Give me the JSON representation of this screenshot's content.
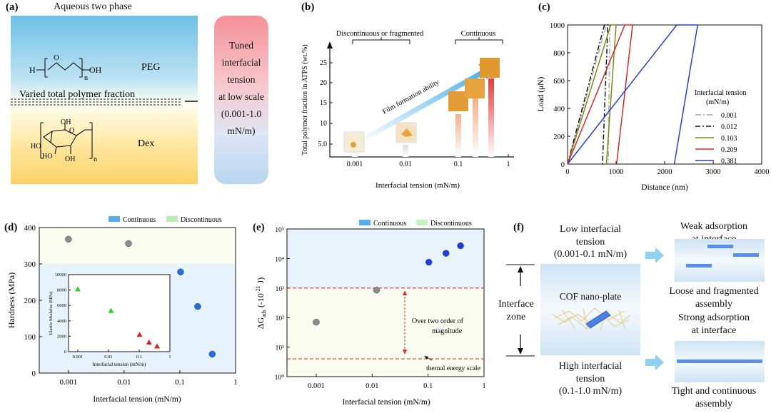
{
  "panel_a": {
    "label": "(a)",
    "title": "Aqueous two phase",
    "peg": "PEG",
    "dex": "Dex",
    "peg_formula": {
      "h": "H",
      "o": "O",
      "oh": "OH",
      "n": "n"
    },
    "dex_formula": {
      "o": "O",
      "ho1": "HO",
      "ho2": "HO",
      "oh1": "OH",
      "oh2": "OH",
      "n": "n"
    },
    "varied": "Varied total polymer fraction",
    "tuned_lines": [
      "Tuned",
      "interfacial",
      "tension",
      "at low scale",
      "(0.001-1.0",
      "mN/m)"
    ]
  },
  "panel_b": {
    "label": "(b)",
    "ylabel": "Total polymer fraction in ATPS (wt.%)",
    "xlabel": "Interfacial tension (mN/m)",
    "yticks": [
      "5.0",
      "10",
      "15",
      "20",
      "25"
    ],
    "xticks": [
      "0.001",
      "0.01",
      "0.1",
      "1"
    ],
    "discontinuous": "Discontinuous  or fragmented",
    "continuous": "Continuous",
    "arrow_label": "Film formation ability"
  },
  "panel_c": {
    "label": "(c)",
    "ylabel": "Load (μN)",
    "xlabel": "Distance (nm)",
    "legend_title": [
      "Interfacial tension",
      "(mN/m)"
    ],
    "chart_data": {
      "type": "line",
      "title": "",
      "xlabel": "Distance (nm)",
      "ylabel": "Load (μN)",
      "xlim": [
        0,
        4000
      ],
      "ylim": [
        0,
        1000
      ],
      "xticks": [
        "0",
        "1000",
        "2000",
        "3000",
        "4000"
      ],
      "yticks": [
        "0",
        "200",
        "400",
        "600",
        "800",
        "1000"
      ],
      "series": [
        {
          "name": "0.001",
          "color": "#aaaaaa",
          "dash": "8,3,2,3",
          "x": [
            0,
            800,
            870,
            840
          ],
          "y": [
            0,
            1000,
            1000,
            0
          ]
        },
        {
          "name": "0.012",
          "color": "#111111",
          "dash": "7,3,2,3",
          "x": [
            0,
            760,
            830,
            720
          ],
          "y": [
            0,
            1000,
            1000,
            0
          ]
        },
        {
          "name": "0.103",
          "color": "#7a8a18",
          "dash": "none",
          "x": [
            0,
            890,
            1000,
            800
          ],
          "y": [
            0,
            1000,
            1000,
            0
          ]
        },
        {
          "name": "0.209",
          "color": "#d42a2a",
          "dash": "none",
          "x": [
            0,
            1180,
            1340,
            1010
          ],
          "y": [
            0,
            1000,
            1000,
            0
          ]
        },
        {
          "name": "0.381",
          "color": "#2a3fd0",
          "dash": "none",
          "x": [
            0,
            2250,
            2680,
            2200
          ],
          "y": [
            0,
            1000,
            1000,
            0
          ]
        }
      ]
    }
  },
  "panel_d": {
    "label": "(d)",
    "legend": [
      "Continuous",
      "Discontinuous"
    ],
    "colors": {
      "continuous": "#5aaee8",
      "discontinuous": "#b6efb0"
    },
    "chart_data": {
      "type": "scatter",
      "xlabel": "Interfacial tension (mN/m)",
      "ylabel": "Hardness (MPa)",
      "xscale": "log",
      "xlim": [
        0.0003,
        1
      ],
      "ylim": [
        0,
        400
      ],
      "xticks": [
        "0.001",
        "0.01",
        "0.1",
        "1"
      ],
      "yticks": [
        "0",
        "100",
        "200",
        "300",
        "400"
      ],
      "series": [
        {
          "name": "Discontinuous",
          "x": [
            0.001,
            0.012
          ],
          "y": [
            368,
            356
          ]
        },
        {
          "name": "Continuous",
          "x": [
            0.103,
            0.209,
            0.381
          ],
          "y": [
            278,
            183,
            52
          ]
        }
      ]
    },
    "inset": {
      "xlabel": "Interfacial tension (mN/m)",
      "ylabel": "Elastic Modulus (MPa)",
      "yticks": [
        "0",
        "2000",
        "4000",
        "6000",
        "8000",
        "10000"
      ],
      "xticks": [
        "0.001",
        "0.01",
        "0.1",
        "1"
      ],
      "chart_data": {
        "type": "scatter",
        "xscale": "log",
        "ylim": [
          0,
          10000
        ],
        "series": [
          {
            "name": "Discontinuous",
            "x": [
              0.001,
              0.012
            ],
            "y": [
              8100,
              5300
            ]
          },
          {
            "name": "Continuous",
            "x": [
              0.103,
              0.209,
              0.381
            ],
            "y": [
              2200,
              1200,
              700
            ]
          }
        ]
      }
    }
  },
  "panel_e": {
    "label": "(e)",
    "legend": [
      "Continuous",
      "Discontinuous"
    ],
    "annot_order": [
      "Over two order of",
      "magnitude"
    ],
    "annot_thermal": "thernal energy scale",
    "chart_data": {
      "type": "scatter",
      "xlabel": "Interfacial tension (mN/m)",
      "ylabel": "ΔG_ads (-10^-21 J)",
      "xscale": "log",
      "yscale": "log",
      "xlim": [
        0.0003,
        1
      ],
      "ylim": [
        1,
        100000
      ],
      "xticks": [
        "0.001",
        "0.01",
        "0.1",
        "1"
      ],
      "yticks": [
        "10⁰",
        "10¹",
        "10²",
        "10³",
        "10⁴",
        "10⁵"
      ],
      "hlines": [
        1000,
        4
      ],
      "series": [
        {
          "name": "Discontinuous",
          "x": [
            0.001,
            0.012
          ],
          "y": [
            70,
            850
          ]
        },
        {
          "name": "Continuous",
          "x": [
            0.103,
            0.209,
            0.381
          ],
          "y": [
            7500,
            15000,
            27000
          ]
        }
      ]
    }
  },
  "panel_f": {
    "label": "(f)",
    "low": [
      "Low interfacial",
      "tension",
      "(0.001-0.1 mN/m)"
    ],
    "high": [
      "High interfacial",
      "tension",
      "(0.1-1.0 mN/m)"
    ],
    "zone": [
      "Interface",
      "zone"
    ],
    "cof": "COF nano-plate",
    "weak": [
      "Weak adsorption",
      "at interface"
    ],
    "strong": [
      "Strong adsorption",
      "at interface"
    ],
    "loose": [
      "Loose and fragmented",
      "assembly"
    ],
    "tight": [
      "Tight and continuous",
      "assembly"
    ]
  }
}
